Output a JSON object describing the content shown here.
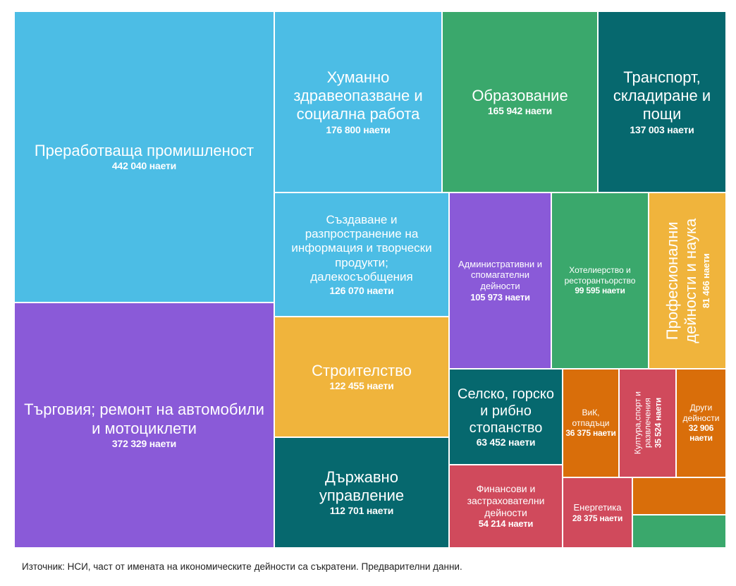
{
  "chart_data": {
    "type": "treemap",
    "value_suffix": "наети",
    "items": [
      {
        "label": "Преработваща промишленост",
        "value": 442040,
        "value_text": "442 040 наети",
        "color": "#4cbde5"
      },
      {
        "label": "Търговия; ремонт на автомобили и мотоциклети",
        "value": 372329,
        "value_text": "372 329 наети",
        "color": "#8a5ad8"
      },
      {
        "label": "Хуманно здравеопазване и социална работа",
        "value": 176800,
        "value_text": "176 800 наети",
        "color": "#4cbde5"
      },
      {
        "label": "Образование",
        "value": 165942,
        "value_text": "165 942 наети",
        "color": "#3aa86c"
      },
      {
        "label": "Транспорт, складиране и пощи",
        "value": 137003,
        "value_text": "137 003 наети",
        "color": "#06686e"
      },
      {
        "label": "Създаване и разпространение на информация и творчески продукти; далекосъобщения",
        "value": 126070,
        "value_text": "126 070 наети",
        "color": "#4cbde5"
      },
      {
        "label": "Строителство",
        "value": 122455,
        "value_text": "122 455 наети",
        "color": "#f0b43c"
      },
      {
        "label": "Държавно управление",
        "value": 112701,
        "value_text": "112 701 наети",
        "color": "#06686e"
      },
      {
        "label": "Административни и спомагателни дейности",
        "value": 105973,
        "value_text": "105 973 наети",
        "color": "#8a5ad8"
      },
      {
        "label": "Хотелиерство и ресторантьорство",
        "value": 99595,
        "value_text": "99 595 наети",
        "color": "#3aa86c"
      },
      {
        "label": "Професионални дейности и наука",
        "value": 81466,
        "value_text": "81 466 наети",
        "color": "#f0b43c"
      },
      {
        "label": "Селско, горско и рибно стопанство",
        "value": 63452,
        "value_text": "63 452 наети",
        "color": "#06686e"
      },
      {
        "label": "Финансови и застрахователни дейности",
        "value": 54214,
        "value_text": "54 214 наети",
        "color": "#d04a5c"
      },
      {
        "label": "ВиК, отпадъци",
        "value": 36375,
        "value_text": "36 375 наети",
        "color": "#d96e0a"
      },
      {
        "label": "Култура,спорт и развлечения",
        "value": 35524,
        "value_text": "35 524 наети",
        "color": "#d04a5c"
      },
      {
        "label": "Други дейности",
        "value": 32906,
        "value_text": "32 906 наети",
        "color": "#d96e0a"
      },
      {
        "label": "Енергетика",
        "value": 28375,
        "value_text": "28 375 наети",
        "color": "#d04a5c"
      },
      {
        "label": "",
        "value": null,
        "value_text": "",
        "color": "#d96e0a"
      },
      {
        "label": "",
        "value": null,
        "value_text": "",
        "color": "#3aa86c"
      }
    ]
  },
  "source_note": "Източник: НСИ, част от имената на икономическите дейности са съкратени. Предварителни данни."
}
